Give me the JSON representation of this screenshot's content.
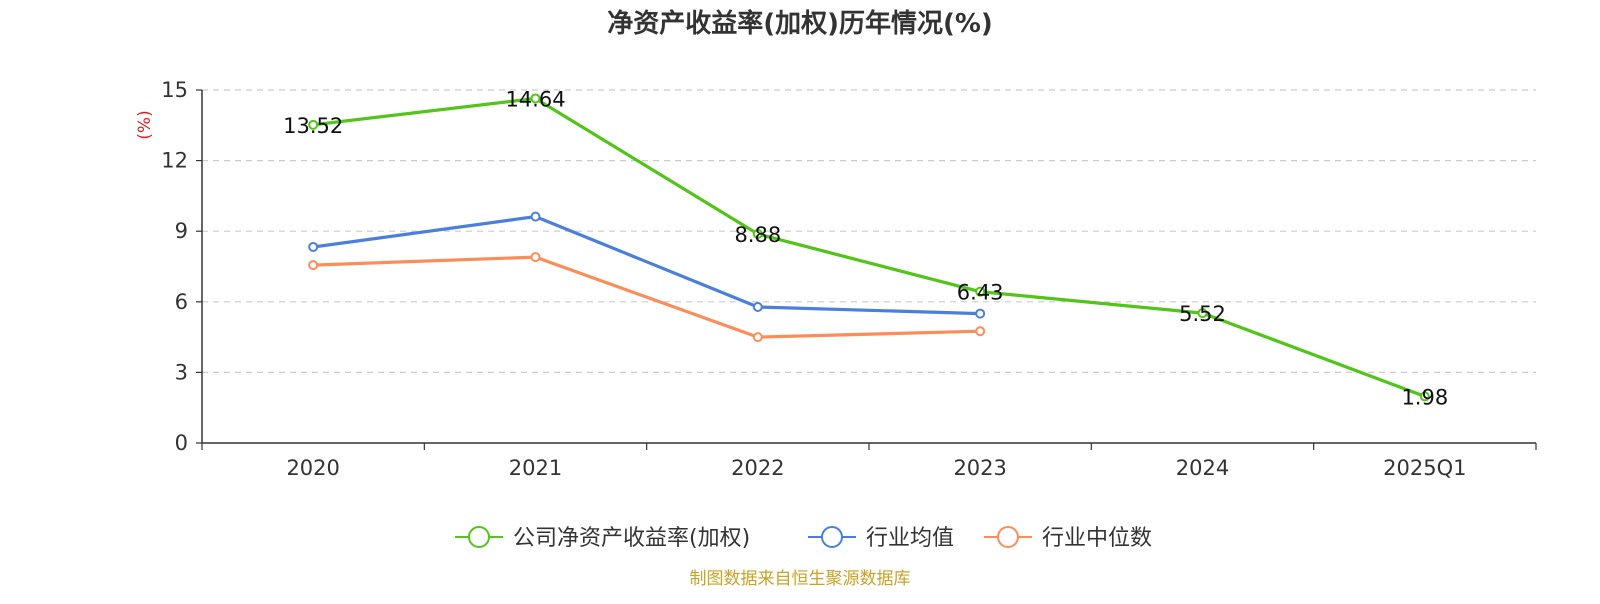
{
  "chart_data": {
    "type": "line",
    "title": "净资产收益率(加权)历年情况(%)",
    "ylabel": "(%)",
    "categories": [
      "2020",
      "2021",
      "2022",
      "2023",
      "2024",
      "2025Q1"
    ],
    "ylim": [
      0,
      15
    ],
    "yticks": [
      0,
      3,
      6,
      9,
      12,
      15
    ],
    "grid": true,
    "legend_position": "bottom",
    "series": [
      {
        "name": "公司净资产收益率(加权)",
        "color": "#52c41a",
        "values": [
          13.52,
          14.64,
          8.88,
          6.43,
          5.52,
          1.98
        ],
        "labels": [
          "13.52",
          "14.64",
          "8.88",
          "6.43",
          "5.52",
          "1.98"
        ]
      },
      {
        "name": "行业均值",
        "color": "#4a7fdc",
        "values": [
          8.33,
          9.62,
          5.78,
          5.5,
          null,
          null
        ]
      },
      {
        "name": "行业中位数",
        "color": "#fb8d58",
        "values": [
          7.56,
          7.9,
          4.5,
          4.75,
          null,
          null
        ]
      }
    ]
  },
  "footer": {
    "source": "制图数据来自恒生聚源数据库"
  },
  "colors": {
    "axis": "#333333",
    "grid": "#cccccc",
    "ylabel": "#e02020",
    "source": "#c9a227"
  }
}
